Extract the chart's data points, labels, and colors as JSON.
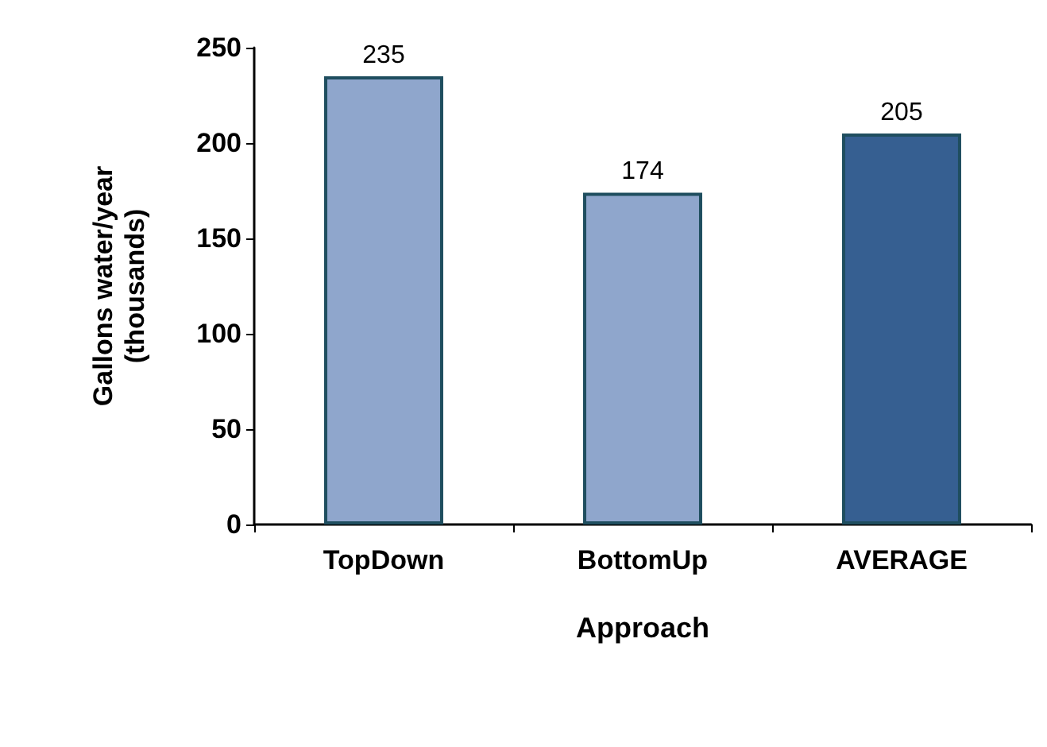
{
  "chart_data": {
    "type": "bar",
    "xlabel": "Approach",
    "ylabel": "Gallons water/year\n(thousands)",
    "categories": [
      "TopDown",
      "BottomUp",
      "AVERAGE"
    ],
    "values": [
      235,
      174,
      205
    ],
    "colors": [
      "#8fa6cc",
      "#8fa6cc",
      "#365f91"
    ],
    "ylim": [
      0,
      250
    ],
    "yticks": [
      0,
      50,
      100,
      150,
      200,
      250
    ],
    "grid": false,
    "data_labels": true
  }
}
